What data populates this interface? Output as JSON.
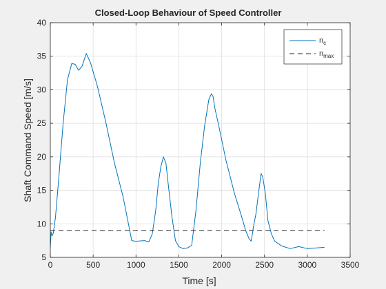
{
  "figure": {
    "background": "#f0f0f0",
    "axes_background": "#ffffff"
  },
  "chart_data": {
    "type": "line",
    "title": "Closed-Loop Behaviour of Speed Controller",
    "xlabel": "Time [s]",
    "ylabel": "Shaft Command Speed [m/s]",
    "xlim": [
      0,
      3500
    ],
    "ylim": [
      5,
      40
    ],
    "xticks": [
      0,
      500,
      1000,
      1500,
      2000,
      2500,
      3000,
      3500
    ],
    "yticks": [
      5,
      10,
      15,
      20,
      25,
      30,
      35,
      40
    ],
    "grid": true,
    "legend_position": "top-right",
    "series": [
      {
        "name": "n",
        "name_subscript": "c",
        "color": "#0072bd",
        "line_style": "solid",
        "x": [
          0,
          10,
          20,
          35,
          60,
          100,
          150,
          200,
          250,
          290,
          330,
          370,
          420,
          470,
          550,
          650,
          750,
          850,
          920,
          950,
          1000,
          1100,
          1150,
          1190,
          1230,
          1260,
          1290,
          1320,
          1350,
          1380,
          1420,
          1460,
          1500,
          1550,
          1600,
          1650,
          1700,
          1750,
          1800,
          1850,
          1880,
          1900,
          1920,
          1960,
          2050,
          2150,
          2230,
          2280,
          2320,
          2345,
          2370,
          2400,
          2430,
          2460,
          2480,
          2510,
          2540,
          2580,
          2620,
          2700,
          2800,
          2900,
          3000,
          3100,
          3200
        ],
        "y": [
          6.5,
          8.8,
          8.2,
          8.6,
          11,
          17,
          25,
          31.5,
          33.9,
          33.8,
          32.9,
          33.5,
          35.4,
          34.0,
          30.5,
          25.0,
          19.0,
          14.0,
          9.5,
          7.5,
          7.4,
          7.5,
          7.3,
          8.5,
          12,
          16,
          18.5,
          20.0,
          19.0,
          15.5,
          11.0,
          7.5,
          6.6,
          6.3,
          6.4,
          6.8,
          12.0,
          19.0,
          24.5,
          28.5,
          29.4,
          29.0,
          27.3,
          25.0,
          19.5,
          14.5,
          11.2,
          9.0,
          7.8,
          7.4,
          9.5,
          11.5,
          14.5,
          17.5,
          17.0,
          14.5,
          10.5,
          8.5,
          7.4,
          6.7,
          6.3,
          6.6,
          6.3,
          6.4,
          6.5
        ]
      },
      {
        "name": "n",
        "name_subscript": "max",
        "color": "#262626",
        "line_style": "dashed",
        "x": [
          0,
          3200
        ],
        "y": [
          9,
          9
        ]
      }
    ]
  }
}
